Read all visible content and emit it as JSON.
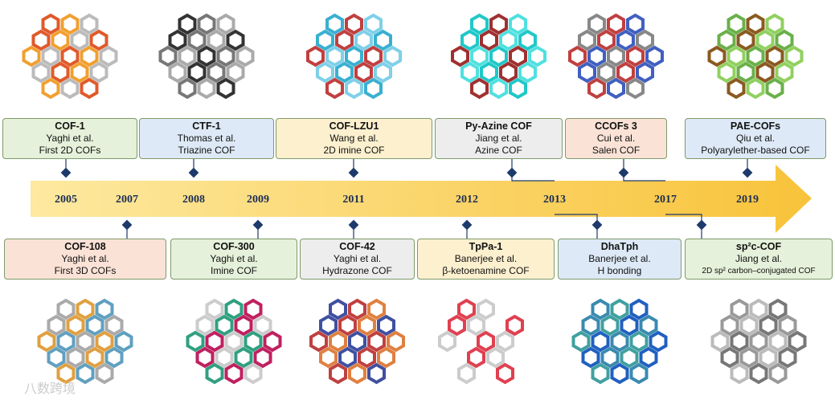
{
  "top_events": [
    {
      "title": "COF-1",
      "author": "Yaghi et al.",
      "description": "First 2D COFs"
    },
    {
      "title": "CTF-1",
      "author": "Thomas et al.",
      "description": "Triazine COF"
    },
    {
      "title": "COF-LZU1",
      "author": "Wang et al.",
      "description": "2D imine COF"
    },
    {
      "title": "Py-Azine COF",
      "author": "Jiang et al.",
      "description": "Azine COF"
    },
    {
      "title": "CCOFs 3",
      "author": "Cui et al.",
      "description": "Salen COF"
    },
    {
      "title": "PAE-COFs",
      "author": "Qiu et al.",
      "description": "Polyarylether-based COF"
    }
  ],
  "bottom_events": [
    {
      "title": "COF-108",
      "author": "Yaghi et al.",
      "description": "First 3D COFs"
    },
    {
      "title": "COF-300",
      "author": "Yaghi et al.",
      "description": "Imine COF"
    },
    {
      "title": "COF-42",
      "author": "Yaghi et al.",
      "description": "Hydrazone COF"
    },
    {
      "title": "TpPa-1",
      "author": "Banerjee et al.",
      "description": "β-ketoenamine COF"
    },
    {
      "title": "DhaTph",
      "author": "Banerjee et al.",
      "description": "H bonding"
    },
    {
      "title": "sp²c-COF",
      "author": "Jiang et al.",
      "description": "2D sp² carbon–conjugated COF"
    }
  ],
  "years": [
    "2005",
    "2007",
    "2008",
    "2009",
    "2011",
    "2012",
    "2013",
    "2017",
    "2019"
  ],
  "watermark": "八数跨境"
}
